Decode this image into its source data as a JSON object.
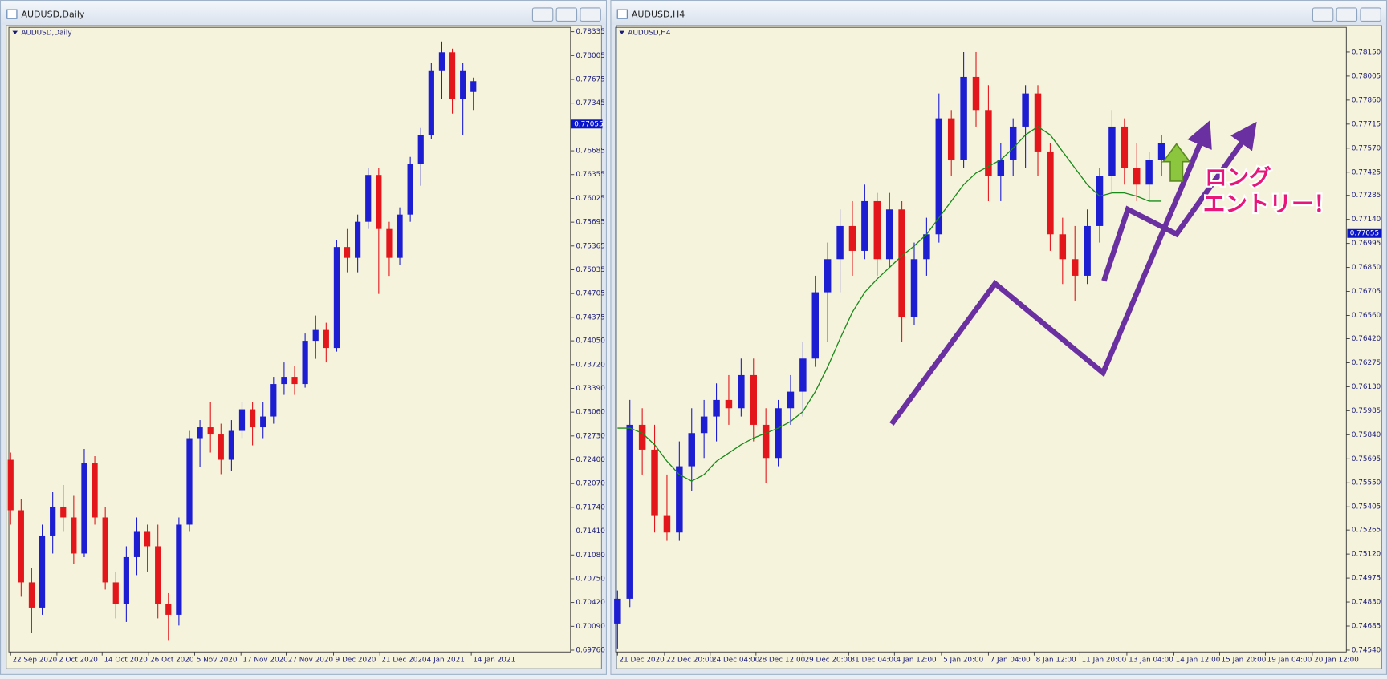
{
  "windows": [
    {
      "title": "AUDUSD,Daily",
      "chart_data": {
        "type": "candlestick",
        "title": "AUDUSD,Daily",
        "up_color": "#1d1dd1",
        "down_color": "#e3161b",
        "ylim": [
          0.69735,
          0.78396
        ],
        "xlim": [
          -0.17,
          53.24
        ],
        "yticks": [
          0.78335,
          0.78005,
          0.77675,
          0.77345,
          0.76685,
          0.76355,
          0.76025,
          0.75695,
          0.75365,
          0.75035,
          0.74705,
          0.74375,
          {
            "value": 0.7405,
            "label": "0.74050"
          },
          {
            "value": 0.7372,
            "label": "0.73720"
          },
          {
            "value": 0.7339,
            "label": "0.73390"
          },
          {
            "value": 0.7306,
            "label": "0.73060"
          },
          {
            "value": 0.7273,
            "label": "0.72730"
          },
          {
            "value": 0.724,
            "label": "0.72400"
          },
          {
            "value": 0.7207,
            "label": "0.72070"
          },
          {
            "value": 0.7174,
            "label": "0.71740"
          },
          {
            "value": 0.7141,
            "label": "0.71410"
          },
          {
            "value": 0.7108,
            "label": "0.71080"
          },
          {
            "value": 0.7075,
            "label": "0.70750"
          },
          {
            "value": 0.7042,
            "label": "0.70420"
          },
          {
            "value": 0.7009,
            "label": "0.70090"
          },
          {
            "value": 0.6976,
            "label": "0.69760"
          }
        ],
        "xticks": [
          {
            "value": 0,
            "label": "22 Sep 2020"
          },
          {
            "value": 4.4,
            "label": "2 Oct 2020"
          },
          {
            "value": 8.7,
            "label": "14 Oct 2020"
          },
          {
            "value": 13.1,
            "label": "26 Oct 2020"
          },
          {
            "value": 17.5,
            "label": "5 Nov 2020"
          },
          {
            "value": 21.9,
            "label": "17 Nov 2020"
          },
          {
            "value": 26.2,
            "label": "27 Nov 2020"
          },
          {
            "value": 30.7,
            "label": "9 Dec 2020"
          },
          {
            "value": 35.1,
            "label": "21 Dec 2020"
          },
          {
            "value": 39.4,
            "label": "4 Jan 2021"
          },
          {
            "value": 43.8,
            "label": "14 Jan 2021"
          }
        ],
        "current_price": 0.77055,
        "ohlc": [
          [
            0.724,
            0.725,
            0.715,
            0.717
          ],
          [
            0.717,
            0.7185,
            0.705,
            0.707
          ],
          [
            0.707,
            0.709,
            0.7,
            0.7035
          ],
          [
            0.7035,
            0.715,
            0.7025,
            0.7135
          ],
          [
            0.7135,
            0.7195,
            0.711,
            0.7175
          ],
          [
            0.7175,
            0.7205,
            0.714,
            0.716
          ],
          [
            0.716,
            0.719,
            0.7095,
            0.711
          ],
          [
            0.711,
            0.7255,
            0.7105,
            0.7235
          ],
          [
            0.7235,
            0.7245,
            0.715,
            0.716
          ],
          [
            0.716,
            0.7175,
            0.706,
            0.707
          ],
          [
            0.707,
            0.7085,
            0.702,
            0.704
          ],
          [
            0.704,
            0.712,
            0.7015,
            0.7105
          ],
          [
            0.7105,
            0.716,
            0.708,
            0.714
          ],
          [
            0.714,
            0.715,
            0.7085,
            0.712
          ],
          [
            0.712,
            0.715,
            0.702,
            0.704
          ],
          [
            0.704,
            0.7055,
            0.699,
            0.7025
          ],
          [
            0.7025,
            0.716,
            0.701,
            0.715
          ],
          [
            0.715,
            0.728,
            0.714,
            0.727
          ],
          [
            0.727,
            0.7295,
            0.723,
            0.7285
          ],
          [
            0.7285,
            0.732,
            0.725,
            0.7275
          ],
          [
            0.7275,
            0.729,
            0.722,
            0.724
          ],
          [
            0.724,
            0.7295,
            0.7225,
            0.728
          ],
          [
            0.728,
            0.732,
            0.727,
            0.731
          ],
          [
            0.731,
            0.732,
            0.726,
            0.7285
          ],
          [
            0.7285,
            0.732,
            0.727,
            0.73
          ],
          [
            0.73,
            0.7355,
            0.729,
            0.7345
          ],
          [
            0.7345,
            0.7375,
            0.733,
            0.7355
          ],
          [
            0.7355,
            0.737,
            0.733,
            0.7345
          ],
          [
            0.7345,
            0.7415,
            0.734,
            0.7405
          ],
          [
            0.7405,
            0.744,
            0.738,
            0.742
          ],
          [
            0.742,
            0.743,
            0.7375,
            0.7395
          ],
          [
            0.7395,
            0.7545,
            0.739,
            0.7535
          ],
          [
            0.7535,
            0.756,
            0.75,
            0.752
          ],
          [
            0.752,
            0.758,
            0.75,
            0.757
          ],
          [
            0.757,
            0.7645,
            0.756,
            0.7635
          ],
          [
            0.7635,
            0.7645,
            0.747,
            0.756
          ],
          [
            0.756,
            0.757,
            0.7495,
            0.752
          ],
          [
            0.752,
            0.759,
            0.751,
            0.758
          ],
          [
            0.758,
            0.766,
            0.757,
            0.765
          ],
          [
            0.765,
            0.77,
            0.762,
            0.769
          ],
          [
            0.769,
            0.779,
            0.7685,
            0.778
          ],
          [
            0.778,
            0.782,
            0.774,
            0.7805
          ],
          [
            0.7805,
            0.781,
            0.772,
            0.774
          ],
          [
            0.774,
            0.779,
            0.769,
            0.778
          ],
          [
            0.775,
            0.777,
            0.7725,
            0.7765
          ]
        ]
      }
    },
    {
      "title": "AUDUSD,H4",
      "chart_data": {
        "type": "candlestick",
        "title": "AUDUSD,H4",
        "up_color": "#1d1dd1",
        "down_color": "#e3161b",
        "ylim": [
          0.74529,
          0.78299
        ],
        "xlim": [
          -0.15,
          58.95
        ],
        "yticks": [
          {
            "value": 0.7815,
            "label": "0.78150"
          },
          0.78005,
          {
            "value": 0.7786,
            "label": "0.77860"
          },
          0.77715,
          {
            "value": 0.7757,
            "label": "0.77570"
          },
          0.77425,
          0.77285,
          {
            "value": 0.7714,
            "label": "0.77140"
          },
          0.76995,
          {
            "value": 0.7685,
            "label": "0.76850"
          },
          0.76705,
          {
            "value": 0.7656,
            "label": "0.76560"
          },
          {
            "value": 0.7642,
            "label": "0.76420"
          },
          0.76275,
          {
            "value": 0.7613,
            "label": "0.76130"
          },
          0.75985,
          {
            "value": 0.7584,
            "label": "0.75840"
          },
          0.75695,
          {
            "value": 0.7555,
            "label": "0.75550"
          },
          0.75405,
          0.75265,
          {
            "value": 0.7512,
            "label": "0.75120"
          },
          0.74975,
          {
            "value": 0.7483,
            "label": "0.74830"
          },
          0.74685,
          {
            "value": 0.7454,
            "label": "0.74540"
          }
        ],
        "xticks": [
          {
            "value": 0,
            "label": "21 Dec 2020"
          },
          {
            "value": 3.8,
            "label": "22 Dec 20:00"
          },
          {
            "value": 7.5,
            "label": "24 Dec 04:00"
          },
          {
            "value": 11.2,
            "label": "28 Dec 12:00"
          },
          {
            "value": 15,
            "label": "29 Dec 20:00"
          },
          {
            "value": 18.7,
            "label": "31 Dec 04:00"
          },
          {
            "value": 22.4,
            "label": "4 Jan 12:00"
          },
          {
            "value": 26.2,
            "label": "5 Jan 20:00"
          },
          {
            "value": 30,
            "label": "7 Jan 04:00"
          },
          {
            "value": 33.7,
            "label": "8 Jan 12:00"
          },
          {
            "value": 37.4,
            "label": "11 Jan 20:00"
          },
          {
            "value": 41.2,
            "label": "13 Jan 04:00"
          },
          {
            "value": 45,
            "label": "14 Jan 12:00"
          },
          {
            "value": 48.7,
            "label": "15 Jan 20:00"
          },
          {
            "value": 52.4,
            "label": "19 Jan 04:00"
          },
          {
            "value": 56.2,
            "label": "20 Jan 12:00"
          }
        ],
        "current_price": 0.77055,
        "ohlc": [
          [
            0.747,
            0.749,
            0.7455,
            0.7485
          ],
          [
            0.7485,
            0.7605,
            0.748,
            0.759
          ],
          [
            0.759,
            0.76,
            0.756,
            0.7575
          ],
          [
            0.7575,
            0.759,
            0.7525,
            0.7535
          ],
          [
            0.7535,
            0.756,
            0.752,
            0.7525
          ],
          [
            0.7525,
            0.758,
            0.752,
            0.7565
          ],
          [
            0.7565,
            0.76,
            0.755,
            0.7585
          ],
          [
            0.7585,
            0.7605,
            0.757,
            0.7595
          ],
          [
            0.7595,
            0.7615,
            0.758,
            0.7605
          ],
          [
            0.7605,
            0.762,
            0.759,
            0.76
          ],
          [
            0.76,
            0.763,
            0.7595,
            0.762
          ],
          [
            0.762,
            0.763,
            0.758,
            0.759
          ],
          [
            0.759,
            0.76,
            0.7555,
            0.757
          ],
          [
            0.757,
            0.7605,
            0.7565,
            0.76
          ],
          [
            0.76,
            0.762,
            0.759,
            0.761
          ],
          [
            0.761,
            0.764,
            0.7595,
            0.763
          ],
          [
            0.763,
            0.768,
            0.7625,
            0.767
          ],
          [
            0.767,
            0.77,
            0.764,
            0.769
          ],
          [
            0.769,
            0.772,
            0.767,
            0.771
          ],
          [
            0.771,
            0.7725,
            0.768,
            0.7695
          ],
          [
            0.7695,
            0.7735,
            0.769,
            0.7725
          ],
          [
            0.7725,
            0.773,
            0.768,
            0.769
          ],
          [
            0.769,
            0.773,
            0.7685,
            0.772
          ],
          [
            0.772,
            0.7725,
            0.764,
            0.7655
          ],
          [
            0.7655,
            0.77,
            0.765,
            0.769
          ],
          [
            0.769,
            0.7715,
            0.768,
            0.7705
          ],
          [
            0.7705,
            0.779,
            0.77,
            0.7775
          ],
          [
            0.7775,
            0.778,
            0.774,
            0.775
          ],
          [
            0.775,
            0.7815,
            0.7745,
            0.78
          ],
          [
            0.78,
            0.7815,
            0.777,
            0.778
          ],
          [
            0.778,
            0.7795,
            0.7725,
            0.774
          ],
          [
            0.774,
            0.776,
            0.7725,
            0.775
          ],
          [
            0.775,
            0.7775,
            0.774,
            0.777
          ],
          [
            0.777,
            0.7795,
            0.7745,
            0.779
          ],
          [
            0.779,
            0.7795,
            0.774,
            0.7755
          ],
          [
            0.7755,
            0.776,
            0.7695,
            0.7705
          ],
          [
            0.7705,
            0.7715,
            0.7675,
            0.769
          ],
          [
            0.769,
            0.771,
            0.7665,
            0.768
          ],
          [
            0.768,
            0.772,
            0.7675,
            0.771
          ],
          [
            0.771,
            0.7745,
            0.77,
            0.774
          ],
          [
            0.774,
            0.778,
            0.773,
            0.777
          ],
          [
            0.777,
            0.7775,
            0.7735,
            0.7745
          ],
          [
            0.7745,
            0.776,
            0.7725,
            0.7735
          ],
          [
            0.7735,
            0.7755,
            0.7725,
            0.775
          ],
          [
            0.775,
            0.7765,
            0.774,
            0.776
          ]
        ],
        "ma": {
          "color": "#1a8a1a",
          "values": [
            0.7588,
            0.7588,
            0.7585,
            0.7578,
            0.7568,
            0.756,
            0.7556,
            0.756,
            0.7568,
            0.7573,
            0.7578,
            0.7582,
            0.7585,
            0.7588,
            0.7592,
            0.7598,
            0.761,
            0.7625,
            0.7642,
            0.7658,
            0.767,
            0.7678,
            0.7685,
            0.7692,
            0.7698,
            0.7705,
            0.7715,
            0.7725,
            0.7735,
            0.7742,
            0.7746,
            0.775,
            0.7757,
            0.7765,
            0.777,
            0.7765,
            0.7755,
            0.7745,
            0.7735,
            0.7728,
            0.773,
            0.773,
            0.7728,
            0.7725,
            0.7725
          ]
        }
      }
    }
  ],
  "annotations": [
    "ロング",
    "エントリー！"
  ]
}
